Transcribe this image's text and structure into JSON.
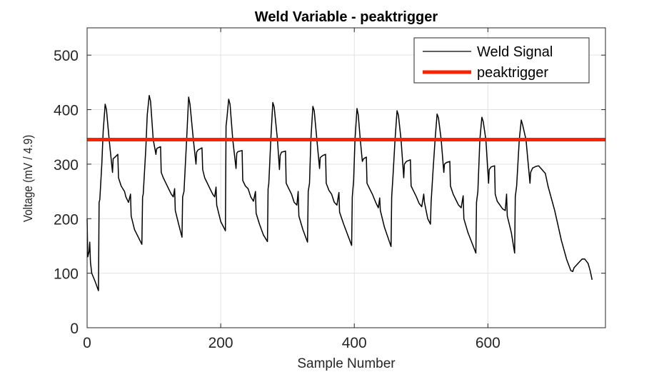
{
  "chart_data": {
    "type": "line",
    "title": "Weld Variable - peaktrigger",
    "xlabel": "Sample Number",
    "ylabel": "Voltage (mV / 4.9)",
    "xlim": [
      0,
      776
    ],
    "ylim": [
      0,
      550
    ],
    "xticks": [
      0,
      200,
      400,
      600
    ],
    "yticks": [
      0,
      100,
      200,
      300,
      400,
      500
    ],
    "grid": true,
    "legend_position": "top-right",
    "series": [
      {
        "name": "Weld Signal",
        "color": "#000000",
        "points": [
          [
            0,
            200
          ],
          [
            1,
            130
          ],
          [
            3,
            140
          ],
          [
            4,
            157
          ],
          [
            5,
            120
          ],
          [
            7,
            100
          ],
          [
            12,
            85
          ],
          [
            17,
            68
          ],
          [
            18,
            230
          ],
          [
            19,
            235
          ],
          [
            22,
            300
          ],
          [
            24,
            360
          ],
          [
            27,
            410
          ],
          [
            29,
            400
          ],
          [
            33,
            345
          ],
          [
            38,
            285
          ],
          [
            39,
            310
          ],
          [
            41,
            312
          ],
          [
            46,
            318
          ],
          [
            47,
            275
          ],
          [
            51,
            260
          ],
          [
            56,
            250
          ],
          [
            58,
            240
          ],
          [
            62,
            230
          ],
          [
            65,
            245
          ],
          [
            66,
            205
          ],
          [
            71,
            180
          ],
          [
            82,
            153
          ],
          [
            83,
            240
          ],
          [
            84,
            245
          ],
          [
            88,
            330
          ],
          [
            90,
            390
          ],
          [
            93,
            426
          ],
          [
            95,
            415
          ],
          [
            99,
            345
          ],
          [
            103,
            318
          ],
          [
            104,
            328
          ],
          [
            106,
            330
          ],
          [
            110,
            332
          ],
          [
            111,
            285
          ],
          [
            114,
            275
          ],
          [
            118,
            265
          ],
          [
            122,
            255
          ],
          [
            126,
            245
          ],
          [
            129,
            240
          ],
          [
            131,
            255
          ],
          [
            132,
            215
          ],
          [
            137,
            190
          ],
          [
            142,
            166
          ],
          [
            143,
            240
          ],
          [
            145,
            250
          ],
          [
            149,
            345
          ],
          [
            152,
            423
          ],
          [
            154,
            410
          ],
          [
            159,
            345
          ],
          [
            163,
            300
          ],
          [
            164,
            322
          ],
          [
            166,
            326
          ],
          [
            172,
            330
          ],
          [
            173,
            290
          ],
          [
            176,
            275
          ],
          [
            180,
            265
          ],
          [
            184,
            255
          ],
          [
            188,
            245
          ],
          [
            191,
            240
          ],
          [
            193,
            258
          ],
          [
            194,
            225
          ],
          [
            200,
            195
          ],
          [
            207,
            178
          ],
          [
            208,
            370
          ],
          [
            209,
            380
          ],
          [
            212,
            419
          ],
          [
            214,
            410
          ],
          [
            218,
            345
          ],
          [
            223,
            292
          ],
          [
            224,
            320
          ],
          [
            226,
            323
          ],
          [
            232,
            325
          ],
          [
            233,
            270
          ],
          [
            237,
            260
          ],
          [
            241,
            255
          ],
          [
            245,
            240
          ],
          [
            249,
            232
          ],
          [
            252,
            250
          ],
          [
            253,
            210
          ],
          [
            258,
            190
          ],
          [
            264,
            170
          ],
          [
            270,
            158
          ],
          [
            271,
            255
          ],
          [
            272,
            265
          ],
          [
            275,
            345
          ],
          [
            278,
            413
          ],
          [
            280,
            405
          ],
          [
            285,
            345
          ],
          [
            288,
            290
          ],
          [
            289,
            316
          ],
          [
            291,
            322
          ],
          [
            297,
            324
          ],
          [
            298,
            265
          ],
          [
            302,
            255
          ],
          [
            306,
            245
          ],
          [
            310,
            230
          ],
          [
            314,
            225
          ],
          [
            316,
            250
          ],
          [
            317,
            205
          ],
          [
            323,
            180
          ],
          [
            330,
            157
          ],
          [
            331,
            250
          ],
          [
            333,
            265
          ],
          [
            335,
            345
          ],
          [
            338,
            406
          ],
          [
            340,
            398
          ],
          [
            344,
            345
          ],
          [
            348,
            292
          ],
          [
            349,
            312
          ],
          [
            353,
            316
          ],
          [
            357,
            318
          ],
          [
            358,
            265
          ],
          [
            362,
            252
          ],
          [
            366,
            245
          ],
          [
            370,
            230
          ],
          [
            374,
            225
          ],
          [
            377,
            248
          ],
          [
            378,
            212
          ],
          [
            384,
            190
          ],
          [
            396,
            151
          ],
          [
            397,
            240
          ],
          [
            399,
            270
          ],
          [
            401,
            345
          ],
          [
            404,
            402
          ],
          [
            406,
            390
          ],
          [
            409,
            345
          ],
          [
            412,
            305
          ],
          [
            414,
            310
          ],
          [
            418,
            313
          ],
          [
            419,
            265
          ],
          [
            423,
            255
          ],
          [
            427,
            245
          ],
          [
            432,
            230
          ],
          [
            436,
            220
          ],
          [
            438,
            238
          ],
          [
            439,
            215
          ],
          [
            445,
            185
          ],
          [
            455,
            149
          ],
          [
            456,
            240
          ],
          [
            458,
            280
          ],
          [
            461,
            345
          ],
          [
            464,
            398
          ],
          [
            466,
            390
          ],
          [
            470,
            345
          ],
          [
            474,
            275
          ],
          [
            475,
            300
          ],
          [
            478,
            305
          ],
          [
            484,
            308
          ],
          [
            485,
            260
          ],
          [
            489,
            250
          ],
          [
            493,
            240
          ],
          [
            497,
            228
          ],
          [
            501,
            222
          ],
          [
            504,
            245
          ],
          [
            505,
            230
          ],
          [
            510,
            200
          ],
          [
            514,
            190
          ],
          [
            515,
            230
          ],
          [
            518,
            290
          ],
          [
            521,
            345
          ],
          [
            524,
            392
          ],
          [
            526,
            385
          ],
          [
            530,
            345
          ],
          [
            534,
            285
          ],
          [
            535,
            300
          ],
          [
            538,
            303
          ],
          [
            543,
            305
          ],
          [
            544,
            260
          ],
          [
            548,
            245
          ],
          [
            552,
            235
          ],
          [
            556,
            225
          ],
          [
            560,
            220
          ],
          [
            563,
            242
          ],
          [
            564,
            200
          ],
          [
            570,
            175
          ],
          [
            582,
            137
          ],
          [
            583,
            230
          ],
          [
            585,
            250
          ],
          [
            588,
            345
          ],
          [
            591,
            386
          ],
          [
            593,
            378
          ],
          [
            597,
            345
          ],
          [
            601,
            265
          ],
          [
            602,
            290
          ],
          [
            605,
            295
          ],
          [
            610,
            297
          ],
          [
            611,
            245
          ],
          [
            614,
            232
          ],
          [
            618,
            225
          ],
          [
            622,
            218
          ],
          [
            626,
            215
          ],
          [
            628,
            245
          ],
          [
            629,
            205
          ],
          [
            635,
            175
          ],
          [
            640,
            137
          ],
          [
            641,
            240
          ],
          [
            643,
            260
          ],
          [
            647,
            345
          ],
          [
            650,
            381
          ],
          [
            652,
            372
          ],
          [
            657,
            345
          ],
          [
            663,
            265
          ],
          [
            664,
            285
          ],
          [
            667,
            293
          ],
          [
            672,
            296
          ],
          [
            676,
            297
          ],
          [
            681,
            290
          ],
          [
            686,
            283
          ],
          [
            690,
            260
          ],
          [
            700,
            215
          ],
          [
            710,
            160
          ],
          [
            718,
            125
          ],
          [
            724,
            105
          ],
          [
            727,
            103
          ],
          [
            729,
            110
          ],
          [
            735,
            118
          ],
          [
            741,
            126
          ],
          [
            745,
            126
          ],
          [
            750,
            118
          ],
          [
            753,
            105
          ],
          [
            756,
            88
          ]
        ]
      },
      {
        "name": "peaktrigger",
        "color": "#FF2200",
        "points": [
          [
            0,
            345
          ],
          [
            776,
            345
          ]
        ]
      }
    ]
  }
}
